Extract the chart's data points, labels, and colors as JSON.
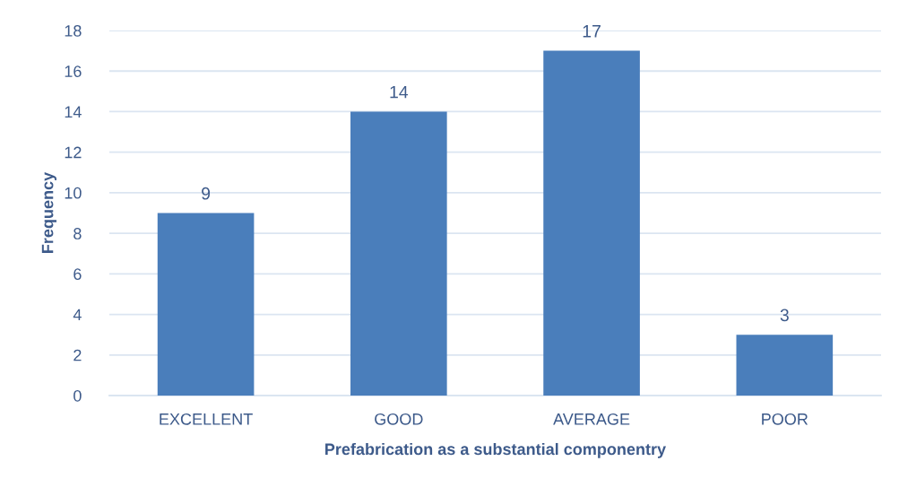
{
  "chart_data": {
    "type": "bar",
    "xlabel": "Prefabrication as a substantial componentry",
    "ylabel": "Frequency",
    "categories": [
      "EXCELLENT",
      "GOOD",
      "AVERAGE",
      "POOR"
    ],
    "values": [
      9,
      14,
      17,
      3
    ],
    "color": "#4a7ebb",
    "ylim": [
      0,
      18
    ],
    "yticks": [
      0,
      2,
      4,
      6,
      8,
      10,
      12,
      14,
      16,
      18
    ],
    "grid": "y",
    "data_labels": true,
    "legend": false
  }
}
